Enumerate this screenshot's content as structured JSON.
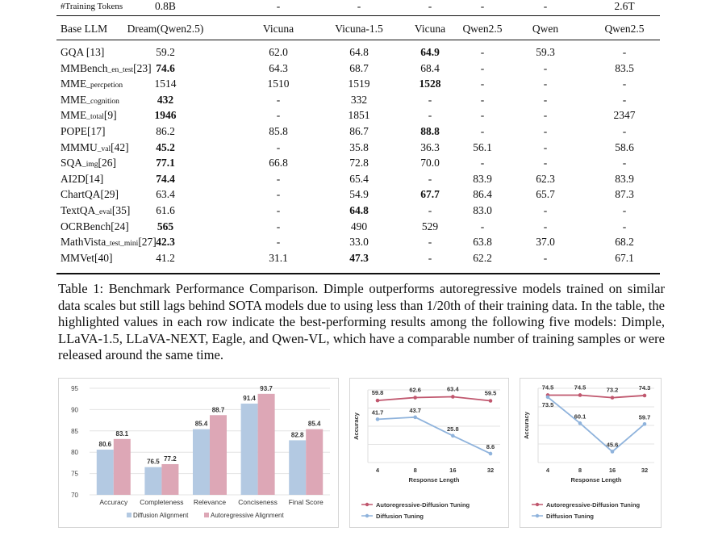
{
  "table": {
    "top_row": {
      "label": "#Training Tokens",
      "values": [
        "0.8B",
        "-",
        "-",
        "-",
        "-",
        "-",
        "2.6T"
      ]
    },
    "header": {
      "label": "Base LLM",
      "columns": [
        "Dream(Qwen2.5)",
        "Vicuna",
        "Vicuna-1.5",
        "Vicuna",
        "Qwen2.5",
        "Qwen",
        "Qwen2.5"
      ]
    },
    "rows": [
      {
        "name": "GQA",
        "sub": "",
        "ref": " [13]",
        "values": [
          "59.2",
          "62.0",
          "64.8",
          "64.9",
          "-",
          "59.3",
          "-"
        ],
        "bold": [
          3
        ]
      },
      {
        "name": "MMBench",
        "sub": "_en_test",
        "ref": "[23]",
        "values": [
          "74.6",
          "64.3",
          "68.7",
          "68.4",
          "-",
          "-",
          "83.5"
        ],
        "bold": [
          0
        ]
      },
      {
        "name": "MME",
        "sub": "_percpetion",
        "ref": "",
        "values": [
          "1514",
          "1510",
          "1519",
          "1528",
          "-",
          "-",
          "-"
        ],
        "bold": [
          3
        ]
      },
      {
        "name": "MME",
        "sub": "_cognition",
        "ref": "",
        "values": [
          "432",
          "-",
          "332",
          "-",
          "-",
          "-",
          "-"
        ],
        "bold": [
          0
        ]
      },
      {
        "name": "MME",
        "sub": "_total",
        "ref": "[9]",
        "values": [
          "1946",
          "-",
          "1851",
          "-",
          "-",
          "-",
          "2347"
        ],
        "bold": [
          0
        ]
      },
      {
        "name": "POPE",
        "sub": "",
        "ref": "[17]",
        "values": [
          "86.2",
          "85.8",
          "86.7",
          "88.8",
          "-",
          "-",
          "-"
        ],
        "bold": [
          3
        ]
      },
      {
        "name": "MMMU",
        "sub": "_val",
        "ref": "[42]",
        "values": [
          "45.2",
          "-",
          "35.8",
          "36.3",
          "56.1",
          "-",
          "58.6"
        ],
        "bold": [
          0
        ]
      },
      {
        "name": "SQA",
        "sub": "_img",
        "ref": "[26]",
        "values": [
          "77.1",
          "66.8",
          "72.8",
          "70.0",
          "-",
          "-",
          "-"
        ],
        "bold": [
          0
        ]
      },
      {
        "name": "AI2D",
        "sub": "",
        "ref": "[14]",
        "values": [
          "74.4",
          "-",
          "65.4",
          "-",
          "83.9",
          "62.3",
          "83.9"
        ],
        "bold": [
          0
        ]
      },
      {
        "name": "ChartQA",
        "sub": "",
        "ref": "[29]",
        "values": [
          "63.4",
          "-",
          "54.9",
          "67.7",
          "86.4",
          "65.7",
          "87.3"
        ],
        "bold": [
          3
        ]
      },
      {
        "name": "TextQA",
        "sub": "_eval",
        "ref": "[35]",
        "values": [
          "61.6",
          "-",
          "64.8",
          "-",
          "83.0",
          "-",
          "-"
        ],
        "bold": [
          2
        ]
      },
      {
        "name": "OCRBench",
        "sub": "",
        "ref": "[24]",
        "values": [
          "565",
          "-",
          "490",
          "529",
          "-",
          "-",
          "-"
        ],
        "bold": [
          0
        ]
      },
      {
        "name": "MathVista",
        "sub": "_test_mini",
        "ref": "[27]",
        "values": [
          "42.3",
          "-",
          "33.0",
          "-",
          "63.8",
          "37.0",
          "68.2"
        ],
        "bold": [
          0
        ]
      },
      {
        "name": "MMVet",
        "sub": "",
        "ref": "[40]",
        "values": [
          "41.2",
          "31.1",
          "47.3",
          "-",
          "62.2",
          "-",
          "67.1"
        ],
        "bold": [
          2
        ]
      }
    ]
  },
  "caption": "Table 1: Benchmark Performance Comparison. Dimple outperforms autoregressive models trained on similar data scales but still lags behind SOTA models due to using less than 1/20th of their training data. In the table, the highlighted values in each row indicate the best-performing results among the following five models: Dimple, LLaVA-1.5, LLaVA-NEXT, Eagle, and Qwen-VL, which have a comparable number of training samples or were released around the same time.",
  "colors": {
    "blue": "#b3c9e2",
    "pink": "#dda7b6",
    "line_red": "#c0576e",
    "line_blue": "#8fb3dc",
    "grid": "#e3e3e3"
  },
  "chart_data": [
    {
      "type": "bar",
      "categories": [
        "Accuracy",
        "Completeness",
        "Relevance",
        "Conciseness",
        "Final Score"
      ],
      "series": [
        {
          "name": "Diffusion Alignment",
          "values": [
            80.6,
            76.5,
            85.4,
            91.4,
            82.8
          ]
        },
        {
          "name": "Autoregressive Alignment",
          "values": [
            83.1,
            77.2,
            88.7,
            93.7,
            85.4
          ]
        }
      ],
      "ylim": [
        70,
        95
      ],
      "yticks": [
        70,
        75,
        80,
        85,
        90,
        95
      ],
      "legend": "bottom"
    },
    {
      "type": "line",
      "x": [
        4,
        8,
        16,
        32
      ],
      "xlabel": "Response Length",
      "ylabel": "Accuracy",
      "series": [
        {
          "name": "Autoregressive-Diffusion Tuning",
          "values": [
            59.8,
            62.6,
            63.4,
            59.5
          ]
        },
        {
          "name": "Diffusion Tuning",
          "values": [
            41.7,
            43.7,
            25.8,
            8.6
          ]
        }
      ],
      "legend": "bottom",
      "grid": "horizontal"
    },
    {
      "type": "line",
      "x": [
        4,
        8,
        16,
        32
      ],
      "xlabel": "Response Length",
      "ylabel": "Accuracy",
      "series": [
        {
          "name": "Autoregressive-Diffusion Tuning",
          "values": [
            74.5,
            74.5,
            73.2,
            74.3
          ]
        },
        {
          "name": "Diffusion Tuning",
          "values": [
            73.5,
            60.1,
            45.6,
            59.7
          ]
        }
      ],
      "legend": "bottom",
      "grid": "horizontal"
    }
  ]
}
